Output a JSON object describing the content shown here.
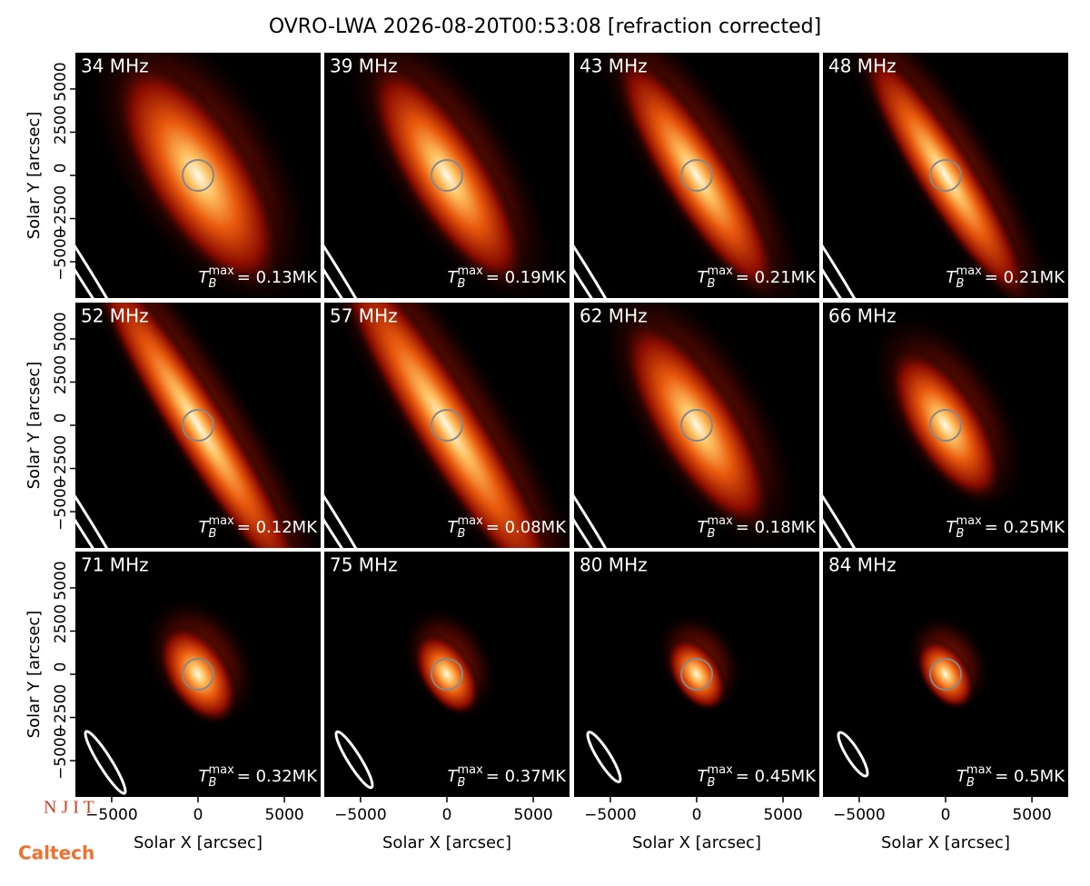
{
  "chart_data": {
    "type": "image_grid",
    "title": "OVRO-LWA 2026-08-20T00:53:08 [refraction corrected]",
    "xlabel": "Solar X [arcsec]",
    "ylabel": "Solar Y [arcsec]",
    "xlim": [
      -7100,
      7100
    ],
    "ylim": [
      -7100,
      7100
    ],
    "xticks": [
      {
        "value": -5000,
        "label": "−5000"
      },
      0,
      5000
    ],
    "yticks": [
      {
        "value": -5000,
        "label": "−5000"
      },
      {
        "value": -2500,
        "label": "−2500"
      },
      0,
      2500,
      5000
    ],
    "tmax_symbol": "T",
    "tmax_sub": "B",
    "tmax_sup": "max",
    "panels": [
      {
        "freq": "34 MHz",
        "tmax": "= 0.13MK"
      },
      {
        "freq": "39 MHz",
        "tmax": "= 0.19MK"
      },
      {
        "freq": "43 MHz",
        "tmax": "= 0.21MK"
      },
      {
        "freq": "48 MHz",
        "tmax": "= 0.21MK"
      },
      {
        "freq": "52 MHz",
        "tmax": "= 0.12MK"
      },
      {
        "freq": "57 MHz",
        "tmax": "= 0.08MK"
      },
      {
        "freq": "62 MHz",
        "tmax": "= 0.18MK"
      },
      {
        "freq": "66 MHz",
        "tmax": "= 0.25MK"
      },
      {
        "freq": "71 MHz",
        "tmax": "= 0.32MK"
      },
      {
        "freq": "75 MHz",
        "tmax": "= 0.37MK"
      },
      {
        "freq": "80 MHz",
        "tmax": "= 0.45MK"
      },
      {
        "freq": "84 MHz",
        "tmax": "= 0.5MK"
      }
    ],
    "logos": [
      "N J I T",
      "Caltech"
    ]
  }
}
